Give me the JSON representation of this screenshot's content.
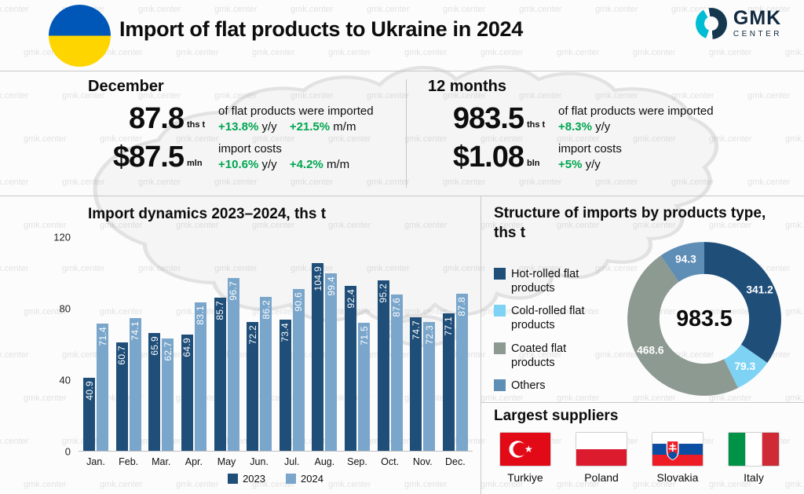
{
  "header": {
    "title": "Import of flat products to Ukraine in 2024",
    "logo_text": "GMK",
    "logo_sub": "CENTER"
  },
  "watermark": "gmk.center",
  "colors": {
    "positive_green": "#00a651",
    "bar_2023": "#1f4e79",
    "bar_2024": "#7aa6cb",
    "ukraine_blue": "#0057b7",
    "ukraine_yellow": "#ffd500"
  },
  "stats": {
    "december": {
      "heading": "December",
      "volume": {
        "value": "87.8",
        "unit": "ths t",
        "desc": "of flat products were imported",
        "changes": [
          {
            "pct": "+13.8%",
            "label": "y/y"
          },
          {
            "pct": "+21.5%",
            "label": "m/m"
          }
        ]
      },
      "costs": {
        "value": "$87.5",
        "unit": "mln",
        "desc": "import costs",
        "changes": [
          {
            "pct": "+10.6%",
            "label": "y/y"
          },
          {
            "pct": "+4.2%",
            "label": "m/m"
          }
        ]
      }
    },
    "year": {
      "heading": "12 months",
      "volume": {
        "value": "983.5",
        "unit": "ths t",
        "desc": "of flat products were imported",
        "changes": [
          {
            "pct": "+8.3%",
            "label": "y/y"
          }
        ]
      },
      "costs": {
        "value": "$1.08",
        "unit": "bln",
        "desc": "import costs",
        "changes": [
          {
            "pct": "+5%",
            "label": "y/y"
          }
        ]
      }
    }
  },
  "chart_data": [
    {
      "type": "bar",
      "title": "Import dynamics 2023–2024, ths t",
      "categories": [
        "Jan.",
        "Feb.",
        "Mar.",
        "Apr.",
        "May",
        "Jun.",
        "Jul.",
        "Aug.",
        "Sep.",
        "Oct.",
        "Nov.",
        "Dec."
      ],
      "series": [
        {
          "name": "2023",
          "color": "#1f4e79",
          "values": [
            40.9,
            60.7,
            65.9,
            64.9,
            85.7,
            72.2,
            73.4,
            104.9,
            92.4,
            95.2,
            74.7,
            77.1
          ]
        },
        {
          "name": "2024",
          "color": "#7aa6cb",
          "values": [
            71.4,
            74.1,
            62.7,
            83.1,
            96.7,
            86.2,
            90.6,
            99.4,
            71.5,
            87.6,
            72.3,
            87.8
          ]
        }
      ],
      "xlabel": "",
      "ylabel": "",
      "ylim": [
        0,
        120
      ],
      "yticks": [
        0,
        40,
        80,
        120
      ],
      "grid": false,
      "legend_position": "bottom"
    },
    {
      "type": "pie",
      "title": "Structure of imports by products type, ths t",
      "center_label": "983.5",
      "slices": [
        {
          "label": "Hot-rolled flat products",
          "value": 341.2,
          "color": "#1f4e79"
        },
        {
          "label": "Cold-rolled flat products",
          "value": 79.3,
          "color": "#7ed3f5"
        },
        {
          "label": "Coated flat products",
          "value": 468.6,
          "color": "#8d9a92"
        },
        {
          "label": "Others",
          "value": 94.3,
          "color": "#5e8db6"
        }
      ],
      "legend_position": "left"
    }
  ],
  "suppliers": {
    "title": "Largest suppliers",
    "items": [
      {
        "name": "Turkiye",
        "flag": "turkiye-flag"
      },
      {
        "name": "Poland",
        "flag": "poland-flag"
      },
      {
        "name": "Slovakia",
        "flag": "slovakia-flag"
      },
      {
        "name": "Italy",
        "flag": "italy-flag"
      }
    ]
  }
}
